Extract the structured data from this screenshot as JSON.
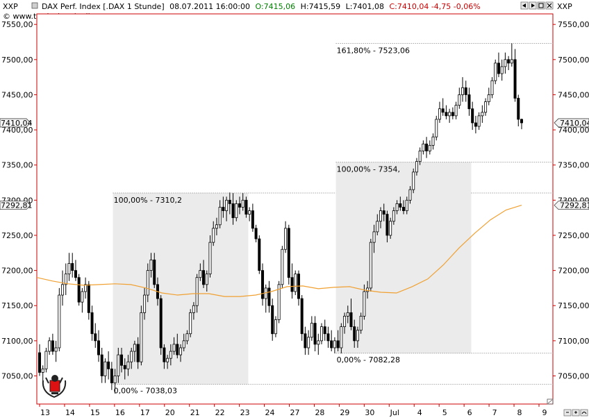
{
  "header": {
    "symbol_left": "XXP",
    "symbol_right": "XXP",
    "instrument": "DAX Perf. Index [.DAX  1 Stunde]",
    "datetime": "08.07.2011 16:00:00",
    "open": "O:7415,06",
    "high": "H:7415,59",
    "low": "L:7401,08",
    "close_change": "C:7410,04 -4,75 -0,06%",
    "copyright": "© www.tradesignalonline.com"
  },
  "colors": {
    "plot_border": "#cc0000",
    "candle": "#000000",
    "moving_average": "#f0a030",
    "fib_fill": "#ebebeb",
    "open_text": "#008000",
    "close_text": "#cc0000"
  },
  "icons": [
    "window-arrow-left-icon",
    "window-arrow-right-icon",
    "window-restore-icon",
    "window-close-icon",
    "logo-seal-icon",
    "chart-tool-icons"
  ],
  "chart_data": {
    "type": "candlestick",
    "title": "DAX Perf. Index [.DAX  1 Stunde]",
    "interval": "1 Stunde",
    "ylim": [
      7010,
      7565
    ],
    "y_ticks": [
      "7550,00",
      "7500,00",
      "7450,00",
      "7400,00",
      "7350,00",
      "7300,00",
      "7250,00",
      "7200,00",
      "7150,00",
      "7100,00",
      "7050,00"
    ],
    "x_ticks": [
      "13",
      "14",
      "15",
      "16",
      "17",
      "20",
      "21",
      "22",
      "23",
      "24",
      "27",
      "28",
      "29",
      "30",
      "Jul",
      "4",
      "5",
      "6",
      "7",
      "8",
      "9"
    ],
    "last_price": {
      "label": "7410,04",
      "value": 7410.04
    },
    "ma_value": {
      "label": "7292,81",
      "value": 7292.81
    },
    "candles": [
      [
        7083,
        7095,
        7050,
        7055
      ],
      [
        7055,
        7065,
        7040,
        7060
      ],
      [
        7060,
        7090,
        7055,
        7085
      ],
      [
        7085,
        7105,
        7080,
        7100
      ],
      [
        7100,
        7110,
        7080,
        7085
      ],
      [
        7085,
        7100,
        7070,
        7090
      ],
      [
        7090,
        7175,
        7085,
        7165
      ],
      [
        7165,
        7200,
        7150,
        7180
      ],
      [
        7180,
        7210,
        7165,
        7195
      ],
      [
        7195,
        7225,
        7185,
        7210
      ],
      [
        7210,
        7225,
        7190,
        7200
      ],
      [
        7200,
        7215,
        7185,
        7190
      ],
      [
        7190,
        7195,
        7150,
        7155
      ],
      [
        7155,
        7175,
        7140,
        7170
      ],
      [
        7170,
        7190,
        7160,
        7180
      ],
      [
        7180,
        7185,
        7130,
        7140
      ],
      [
        7140,
        7150,
        7100,
        7110
      ],
      [
        7110,
        7125,
        7090,
        7100
      ],
      [
        7100,
        7115,
        7070,
        7080
      ],
      [
        7080,
        7090,
        7040,
        7050
      ],
      [
        7050,
        7075,
        7040,
        7070
      ],
      [
        7070,
        7085,
        7045,
        7060
      ],
      [
        7060,
        7070,
        7030,
        7040
      ],
      [
        7040,
        7060,
        7025,
        7050
      ],
      [
        7050,
        7090,
        7040,
        7080
      ],
      [
        7080,
        7090,
        7055,
        7065
      ],
      [
        7065,
        7075,
        7045,
        7060
      ],
      [
        7060,
        7080,
        7050,
        7070
      ],
      [
        7070,
        7090,
        7060,
        7085
      ],
      [
        7085,
        7100,
        7070,
        7095
      ],
      [
        7095,
        7105,
        7060,
        7070
      ],
      [
        7070,
        7150,
        7065,
        7140
      ],
      [
        7140,
        7175,
        7130,
        7165
      ],
      [
        7165,
        7210,
        7155,
        7200
      ],
      [
        7200,
        7225,
        7190,
        7215
      ],
      [
        7215,
        7225,
        7175,
        7180
      ],
      [
        7180,
        7190,
        7150,
        7160
      ],
      [
        7160,
        7165,
        7080,
        7090
      ],
      [
        7090,
        7095,
        7060,
        7070
      ],
      [
        7070,
        7080,
        7060,
        7075
      ],
      [
        7075,
        7095,
        7065,
        7085
      ],
      [
        7085,
        7105,
        7080,
        7095
      ],
      [
        7095,
        7110,
        7075,
        7080
      ],
      [
        7080,
        7095,
        7070,
        7090
      ],
      [
        7090,
        7110,
        7085,
        7100
      ],
      [
        7100,
        7115,
        7095,
        7110
      ],
      [
        7110,
        7145,
        7105,
        7140
      ],
      [
        7140,
        7155,
        7130,
        7150
      ],
      [
        7150,
        7195,
        7140,
        7190
      ],
      [
        7190,
        7210,
        7185,
        7200
      ],
      [
        7200,
        7215,
        7175,
        7180
      ],
      [
        7180,
        7200,
        7170,
        7195
      ],
      [
        7195,
        7250,
        7190,
        7240
      ],
      [
        7240,
        7270,
        7235,
        7260
      ],
      [
        7260,
        7275,
        7250,
        7265
      ],
      [
        7265,
        7300,
        7260,
        7290
      ],
      [
        7290,
        7305,
        7275,
        7285
      ],
      [
        7285,
        7305,
        7270,
        7300
      ],
      [
        7300,
        7311,
        7280,
        7295
      ],
      [
        7295,
        7310,
        7265,
        7275
      ],
      [
        7275,
        7300,
        7270,
        7295
      ],
      [
        7295,
        7305,
        7280,
        7290
      ],
      [
        7290,
        7310,
        7285,
        7300
      ],
      [
        7300,
        7305,
        7275,
        7280
      ],
      [
        7280,
        7290,
        7270,
        7285
      ],
      [
        7285,
        7295,
        7255,
        7260
      ],
      [
        7260,
        7265,
        7240,
        7245
      ],
      [
        7245,
        7250,
        7195,
        7200
      ],
      [
        7200,
        7210,
        7150,
        7160
      ],
      [
        7160,
        7180,
        7140,
        7175
      ],
      [
        7175,
        7185,
        7140,
        7150
      ],
      [
        7150,
        7160,
        7100,
        7110
      ],
      [
        7110,
        7135,
        7105,
        7130
      ],
      [
        7130,
        7185,
        7125,
        7180
      ],
      [
        7180,
        7235,
        7175,
        7230
      ],
      [
        7230,
        7270,
        7225,
        7260
      ],
      [
        7260,
        7265,
        7180,
        7190
      ],
      [
        7190,
        7210,
        7160,
        7170
      ],
      [
        7170,
        7200,
        7165,
        7195
      ],
      [
        7195,
        7200,
        7150,
        7160
      ],
      [
        7160,
        7165,
        7100,
        7110
      ],
      [
        7110,
        7120,
        7080,
        7090
      ],
      [
        7090,
        7115,
        7080,
        7105
      ],
      [
        7105,
        7135,
        7100,
        7125
      ],
      [
        7125,
        7135,
        7085,
        7095
      ],
      [
        7095,
        7110,
        7080,
        7100
      ],
      [
        7100,
        7125,
        7095,
        7120
      ],
      [
        7120,
        7130,
        7100,
        7110
      ],
      [
        7110,
        7120,
        7090,
        7100
      ],
      [
        7100,
        7115,
        7085,
        7090
      ],
      [
        7090,
        7105,
        7082,
        7100
      ],
      [
        7100,
        7115,
        7085,
        7090
      ],
      [
        7090,
        7125,
        7082,
        7120
      ],
      [
        7120,
        7140,
        7110,
        7135
      ],
      [
        7135,
        7150,
        7125,
        7140
      ],
      [
        7140,
        7160,
        7115,
        7120
      ],
      [
        7120,
        7130,
        7090,
        7100
      ],
      [
        7100,
        7120,
        7090,
        7115
      ],
      [
        7115,
        7140,
        7110,
        7135
      ],
      [
        7135,
        7180,
        7130,
        7170
      ],
      [
        7170,
        7185,
        7160,
        7175
      ],
      [
        7175,
        7245,
        7170,
        7240
      ],
      [
        7240,
        7265,
        7225,
        7255
      ],
      [
        7255,
        7280,
        7250,
        7270
      ],
      [
        7270,
        7290,
        7260,
        7285
      ],
      [
        7285,
        7295,
        7270,
        7280
      ],
      [
        7280,
        7285,
        7240,
        7250
      ],
      [
        7250,
        7275,
        7245,
        7270
      ],
      [
        7270,
        7290,
        7265,
        7285
      ],
      [
        7285,
        7300,
        7280,
        7295
      ],
      [
        7295,
        7305,
        7285,
        7290
      ],
      [
        7290,
        7300,
        7280,
        7285
      ],
      [
        7285,
        7305,
        7280,
        7300
      ],
      [
        7300,
        7320,
        7295,
        7315
      ],
      [
        7315,
        7345,
        7310,
        7340
      ],
      [
        7340,
        7360,
        7335,
        7355
      ],
      [
        7355,
        7375,
        7350,
        7370
      ],
      [
        7370,
        7385,
        7365,
        7380
      ],
      [
        7380,
        7390,
        7360,
        7370
      ],
      [
        7370,
        7385,
        7365,
        7378
      ],
      [
        7378,
        7395,
        7372,
        7390
      ],
      [
        7390,
        7420,
        7385,
        7415
      ],
      [
        7415,
        7440,
        7410,
        7430
      ],
      [
        7430,
        7445,
        7420,
        7425
      ],
      [
        7425,
        7435,
        7415,
        7420
      ],
      [
        7420,
        7430,
        7410,
        7425
      ],
      [
        7425,
        7432,
        7415,
        7420
      ],
      [
        7420,
        7440,
        7415,
        7435
      ],
      [
        7435,
        7460,
        7430,
        7450
      ],
      [
        7450,
        7475,
        7440,
        7460
      ],
      [
        7460,
        7470,
        7440,
        7450
      ],
      [
        7450,
        7460,
        7420,
        7430
      ],
      [
        7430,
        7440,
        7400,
        7410
      ],
      [
        7410,
        7420,
        7395,
        7405
      ],
      [
        7405,
        7425,
        7400,
        7420
      ],
      [
        7420,
        7435,
        7410,
        7425
      ],
      [
        7425,
        7445,
        7420,
        7440
      ],
      [
        7440,
        7460,
        7435,
        7450
      ],
      [
        7450,
        7475,
        7445,
        7470
      ],
      [
        7470,
        7500,
        7465,
        7495
      ],
      [
        7495,
        7510,
        7475,
        7480
      ],
      [
        7480,
        7500,
        7470,
        7490
      ],
      [
        7490,
        7510,
        7480,
        7500
      ],
      [
        7500,
        7505,
        7485,
        7495
      ],
      [
        7495,
        7523,
        7490,
        7500
      ],
      [
        7500,
        7515,
        7440,
        7445
      ],
      [
        7445,
        7450,
        7405,
        7415
      ],
      [
        7415,
        7416,
        7401,
        7410
      ]
    ],
    "moving_average": [
      7190,
      7185,
      7181,
      7179,
      7180,
      7181,
      7180,
      7175,
      7168,
      7165,
      7167,
      7167,
      7163,
      7163,
      7165,
      7170,
      7177,
      7178,
      7174,
      7176,
      7177,
      7172,
      7169,
      7168,
      7177,
      7188,
      7208,
      7232,
      7253,
      7272,
      7286,
      7292.81
    ],
    "fib_zones": [
      {
        "from_candle": 23,
        "to_candle": 63,
        "levels": [
          {
            "label": "100,00% - 7310,2",
            "value": 7310.2
          },
          {
            "label": "0,00% - 7038,03",
            "value": 7038.03
          }
        ]
      },
      {
        "from_candle": 91,
        "to_candle": 131,
        "levels": [
          {
            "label": "161,80% - 7523,06",
            "value": 7523.06
          },
          {
            "label": "100,00% - 7354,",
            "value": 7354.0
          },
          {
            "label": "0,00% - 7082,28",
            "value": 7082.28
          }
        ]
      }
    ]
  }
}
